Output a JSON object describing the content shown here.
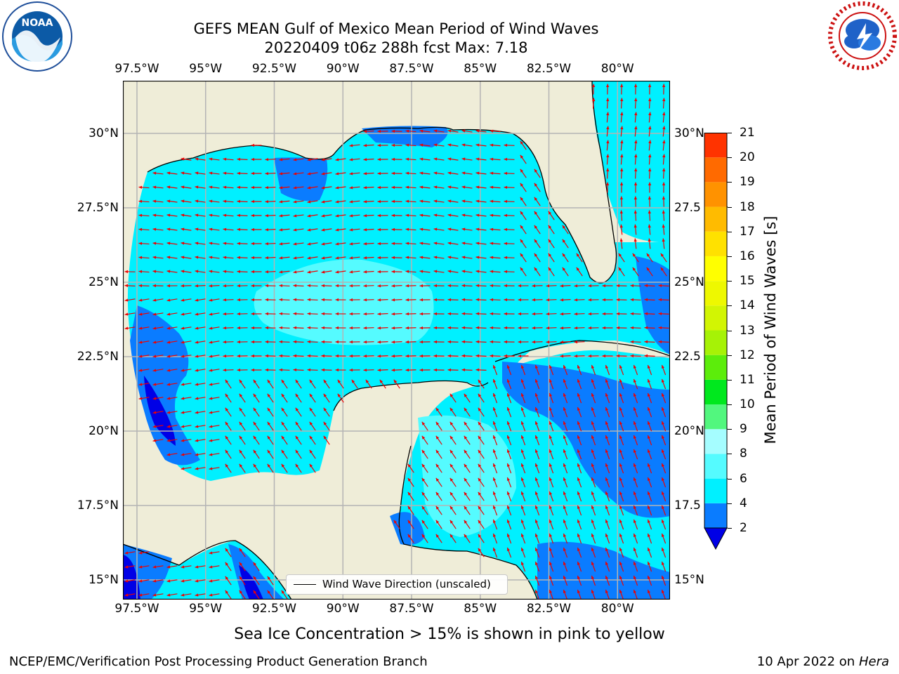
{
  "header": {
    "title_line1": "GEFS MEAN Gulf of Mexico Mean Period of Wind Waves",
    "title_line2": "20220409 t06z 288h fcst   Max: 7.18"
  },
  "logos": {
    "left": "NOAA",
    "left_ring": "NATIONAL OCEANIC AND ATMOSPHERIC ADMINISTRATION · U.S. DEPARTMENT OF COMMERCE",
    "right_ring": "NATIONAL WEATHER SERVICE"
  },
  "map": {
    "lon_ticks": [
      "97.5°W",
      "95°W",
      "92.5°W",
      "90°W",
      "87.5°W",
      "85°W",
      "82.5°W",
      "80°W"
    ],
    "lat_ticks_left": [
      "30°N",
      "27.5°N",
      "25°N",
      "22.5°N",
      "20°N",
      "17.5°N",
      "15°N"
    ],
    "lat_ticks_right": [
      "30°N",
      "27.5",
      "25°N",
      "22.5",
      "20°N",
      "17.5",
      "15°N"
    ],
    "legend_label": "Wind Wave Direction (unscaled)",
    "colors": {
      "land": "#efedd8",
      "ocean_2_4": "#0a7cff",
      "ocean_4_6": "#00f0ff",
      "ocean_6_8": "#55fbff",
      "ocean_lt2": "#0000e6",
      "arrow": "#ee0000",
      "grid": "#b4b4b4"
    }
  },
  "colorbar": {
    "label": "Mean Period of Wind Waves [s]",
    "ticks": [
      "2",
      "4",
      "6",
      "8",
      "9",
      "10",
      "11",
      "12",
      "13",
      "14",
      "15",
      "16",
      "17",
      "18",
      "19",
      "20",
      "21"
    ],
    "colors": [
      "#0a7cff",
      "#00f0ff",
      "#55fbff",
      "#a5fdff",
      "#52f77e",
      "#00e81e",
      "#5ced0b",
      "#a6f206",
      "#d2f503",
      "#eef800",
      "#ffff00",
      "#ffe100",
      "#ffbb00",
      "#ff9200",
      "#ff6a00",
      "#ff3300",
      "#ff0000"
    ]
  },
  "note": "Sea Ice Concentration > 15% is shown in pink to yellow",
  "footer": {
    "left": "NCEP/EMC/Verification Post Processing Product Generation Branch",
    "right_date": "10 Apr 2022 on",
    "right_host": "Hera"
  }
}
